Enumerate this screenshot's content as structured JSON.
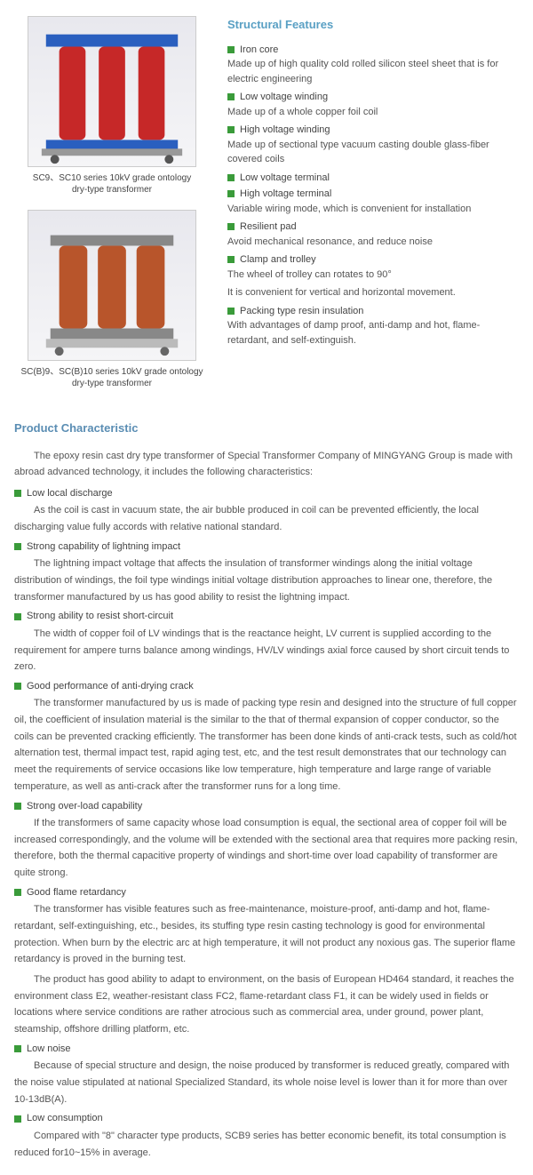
{
  "structural": {
    "title": "Structural Features",
    "features": [
      {
        "label": "Iron core",
        "desc": "Made up of high quality cold rolled silicon steel sheet that is for electric engineering"
      },
      {
        "label": "Low voltage winding",
        "desc": "Made up of a whole copper foil coil"
      },
      {
        "label": "High voltage winding",
        "desc": "Made up of sectional type vacuum casting double glass-fiber covered coils"
      },
      {
        "label": "Low voltage terminal",
        "desc": ""
      },
      {
        "label": "High voltage terminal",
        "desc": "Variable wiring mode, which is convenient  for installation"
      },
      {
        "label": "Resilient pad",
        "desc": "Avoid mechanical resonance, and reduce noise"
      },
      {
        "label": "Clamp and trolley",
        "desc": "The wheel of trolley can rotates to 90°\nIt is convenient for vertical and horizontal movement."
      },
      {
        "label": "Packing type resin insulation",
        "desc": "With advantages of damp proof, anti-damp and hot, flame-retardant, and self-extinguish."
      }
    ]
  },
  "products": [
    {
      "caption": "SC9、SC10 series 10kV grade ontology\ndry-type transformer",
      "frame_color": "#2a5fbf",
      "coil_color": "#c62828"
    },
    {
      "caption": "SC(B)9、SC(B)10 series 10kV grade ontology\ndry-type transformer",
      "frame_color": "#888",
      "coil_color": "#b8552b"
    }
  ],
  "characteristic": {
    "title": "Product Characteristic",
    "intro": "The epoxy resin cast dry type transformer of Special Transformer Company of MINGYANG Group is made with abroad advanced technology, it includes the following characteristics:",
    "items": [
      {
        "label": "Low local discharge",
        "desc": "As the coil is cast in vacuum state, the air bubble produced in coil can be prevented efficiently, the local discharging value fully accords with relative national standard."
      },
      {
        "label": "Strong capability of lightning impact",
        "desc": "The lightning impact voltage that affects the insulation of transformer windings along the initial voltage distribution of windings, the foil type windings initial voltage distribution approaches to linear one, therefore, the transformer manufactured by us has good ability to resist the lightning impact."
      },
      {
        "label": "Strong ability to resist short-circuit",
        "desc": "The width of copper foil of LV windings that is the reactance height, LV current is supplied according to the requirement for ampere turns balance among windings, HV/LV windings axial force caused by short circuit tends to zero."
      },
      {
        "label": "Good performance of anti-drying crack",
        "desc": "The transformer manufactured by us is made of packing type resin and designed into the structure of full copper oil, the coefficient of insulation material is the similar to the that of thermal expansion of copper conductor, so the coils can be prevented cracking efficiently. The transformer has been done kinds of anti-crack tests, such as cold/hot alternation test, thermal impact test, rapid aging test, etc, and the test result demonstrates that our technology can meet the requirements of service occasions like low temperature, high temperature and large range of variable temperature, as well as anti-crack after the transformer runs for a long time."
      },
      {
        "label": "Strong over-load capability",
        "desc": "If the transformers of same capacity whose load consumption is equal, the sectional area of copper foil will be increased correspondingly, and the volume will be extended with the sectional area that requires more packing resin, therefore, both the thermal capacitive property of windings and short-time over load capability of transformer are quite strong."
      },
      {
        "label": "Good flame retardancy",
        "desc": "The transformer has visible features such as free-maintenance, moisture-proof, anti-damp and hot, flame-retardant, self-extinguishing, etc., besides, its stuffing type resin casting technology is good for environmental protection. When burn by the electric arc at high temperature, it will not product any noxious gas. The superior flame retardancy is proved in the burning test.",
        "desc2": "The product has good ability to adapt to environment, on the basis of European HD464 standard, it reaches the environment class E2, weather-resistant class FC2, flame-retardant class F1, it can be widely used in fields or locations where service conditions are rather atrocious such as commercial area, under ground, power plant, steamship, offshore drilling platform, etc."
      },
      {
        "label": "Low noise",
        "desc": "Because of special structure and design, the noise produced by transformer is reduced greatly, compared with the noise value stipulated at national Specialized Standard, its whole noise level is lower than it for more than over 10-13dB(A)."
      },
      {
        "label": "Low consumption",
        "desc": "Compared with \"8\" character type products, SCB9 series has better economic benefit, its total consumption is reduced for10~15% in average."
      }
    ]
  },
  "colors": {
    "bullet": "#3a9b3a",
    "title": "#5aa0c4"
  }
}
